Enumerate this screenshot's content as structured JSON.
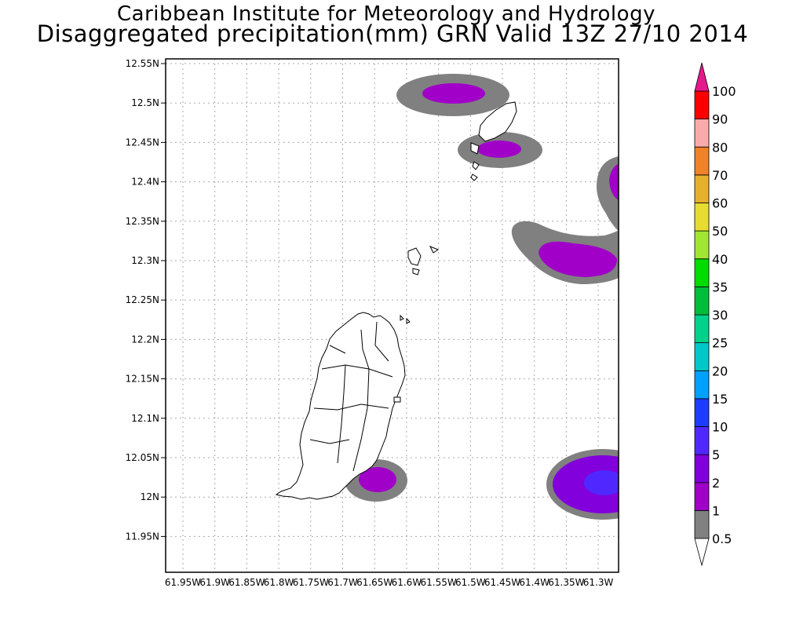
{
  "header": {
    "title_line1": "Caribbean Institute for Meteorology and Hydrology",
    "title_line2": "Disaggregated precipitation(mm) GRN Valid 13Z 27/10 2014"
  },
  "map": {
    "region": "Grenada",
    "lat_ticks": [
      "12.55N",
      "12.5N",
      "12.45N",
      "12.4N",
      "12.35N",
      "12.3N",
      "12.25N",
      "12.2N",
      "12.15N",
      "12.1N",
      "12.05N",
      "12N",
      "11.95N"
    ],
    "lon_ticks": [
      "61.95W",
      "61.9W",
      "61.85W",
      "61.8W",
      "61.75W",
      "61.7W",
      "61.65W",
      "61.6W",
      "61.55W",
      "61.5W",
      "61.45W",
      "61.4W",
      "61.35W",
      "61.3W"
    ],
    "grid": true,
    "precip_cells": [
      {
        "lon": -61.52,
        "lat": 12.51,
        "max_class": "1-2"
      },
      {
        "lon": -61.46,
        "lat": 12.44,
        "max_class": "1-2"
      },
      {
        "lon": -61.3,
        "lat": 12.4,
        "max_class": "1-2"
      },
      {
        "lon": -61.34,
        "lat": 12.3,
        "max_class": "1-2"
      },
      {
        "lon": -61.64,
        "lat": 12.02,
        "max_class": "1-2"
      },
      {
        "lon": -61.31,
        "lat": 12.02,
        "max_class": "2-5"
      }
    ]
  },
  "colorbar": {
    "units": "mm",
    "levels": [
      "0.5",
      "1",
      "2",
      "5",
      "10",
      "15",
      "20",
      "25",
      "30",
      "35",
      "40",
      "50",
      "60",
      "70",
      "80",
      "90",
      "100"
    ],
    "colors": [
      "#808080",
      "#a000c8",
      "#8200dc",
      "#5028ff",
      "#1e3cff",
      "#00a0ff",
      "#00c8c8",
      "#00d28c",
      "#00be3c",
      "#00dc00",
      "#a0e632",
      "#e6dc32",
      "#e6af2d",
      "#f08228",
      "#faaaaa",
      "#fa0000",
      "#fa3c3c",
      "#e6198c"
    ],
    "under_color": "#ffffff",
    "over_color": "#e6198c"
  }
}
